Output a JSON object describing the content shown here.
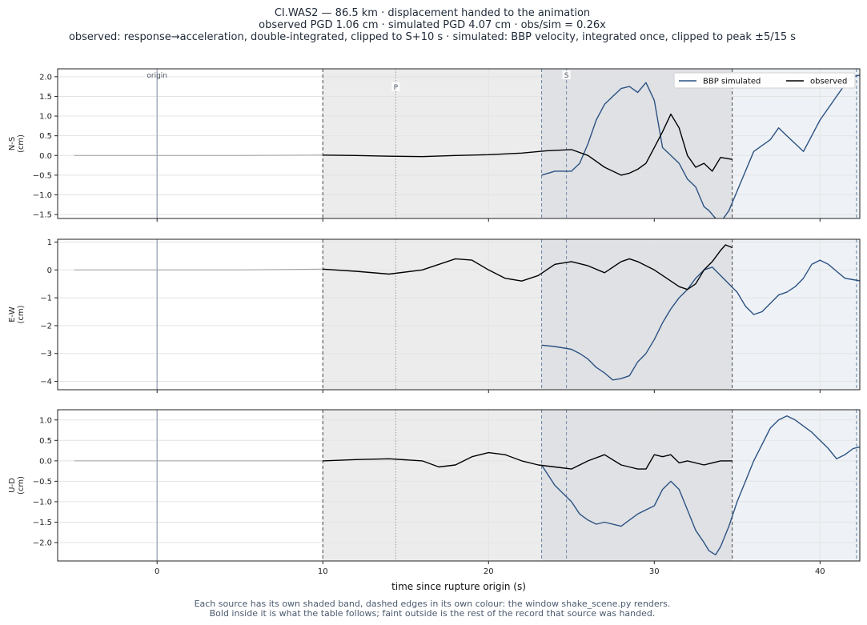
{
  "title_lines": [
    "CI.WAS2  —  86.5 km   ·   displacement handed to the animation",
    "observed PGD 1.06 cm   ·   simulated PGD 4.07 cm   ·   obs/sim = 0.26x",
    "observed: response→acceleration, double-integrated, clipped to S+10 s   ·   simulated: BBP velocity, integrated once, clipped to peak ±5/15 s"
  ],
  "footer_lines": [
    "Each source has its own shaded band, dashed edges in its own colour: the window shake_scene.py renders.",
    "Bold inside it is what the table follows;   faint outside is the rest of the record that source was handed."
  ],
  "colors": {
    "simulated": "#2c5282",
    "observed": "#000000",
    "observed_faint": "#a0a0a0",
    "obs_band": "#ececec",
    "sim_band": "#eef2f6",
    "overlap_band": "#dfe1e5",
    "obs_edge": "#555555",
    "sim_edge": "#6f8aa8",
    "origin_line": "#9aa3bd",
    "p_line": "#999999",
    "s_line": "#7f93b0",
    "grid": "#e3e3e3"
  },
  "chart_data": {
    "type": "line",
    "xlabel": "time since rupture origin (s)",
    "xlim": [
      -6,
      42.4
    ],
    "xticks": [
      0,
      10,
      20,
      30,
      40
    ],
    "markers": [
      {
        "label": "origin",
        "t": 0
      },
      {
        "label": "P",
        "t": 14.4
      },
      {
        "label": "S",
        "t": 24.7
      }
    ],
    "observed_window": [
      10,
      34.7
    ],
    "simulated_window": [
      23.2,
      43.2
    ],
    "legend": [
      "BBP simulated",
      "observed"
    ],
    "legend_position": "top-right",
    "grid": true,
    "panels": [
      {
        "ylabel": [
          "N-S",
          "(cm)"
        ],
        "ylim": [
          -1.6,
          2.2
        ],
        "yticks": [
          -1.5,
          -1.0,
          -0.5,
          0.0,
          0.5,
          1.0,
          1.5,
          2.0
        ],
        "ytick_labels": [
          "−1.5",
          "−1.0",
          "−0.5",
          "0.0",
          "0.5",
          "1.0",
          "1.5",
          "2.0"
        ],
        "observed_faint": {
          "t": [
            -5,
            0,
            5,
            10
          ],
          "v": [
            0,
            0,
            0,
            0.01
          ]
        },
        "observed": {
          "t": [
            10,
            12,
            14,
            16,
            18,
            20,
            22,
            23.5,
            25,
            26,
            27,
            28,
            28.5,
            29,
            29.5,
            30,
            30.5,
            31,
            31.5,
            32,
            32.5,
            33,
            33.5,
            34,
            34.7
          ],
          "v": [
            0.01,
            0.0,
            -0.02,
            -0.03,
            0.0,
            0.02,
            0.06,
            0.12,
            0.15,
            0.0,
            -0.3,
            -0.5,
            -0.45,
            -0.35,
            -0.2,
            0.2,
            0.6,
            1.05,
            0.7,
            0.0,
            -0.3,
            -0.2,
            -0.4,
            -0.05,
            -0.1
          ]
        },
        "simulated": {
          "t": [
            23.2,
            24,
            25,
            25.5,
            26,
            26.5,
            27,
            27.5,
            28,
            28.5,
            29,
            29.5,
            30,
            30.5,
            31,
            31.5,
            32,
            32.5,
            33,
            33.3,
            33.7,
            34,
            34.5,
            35,
            35.5,
            36,
            37,
            37.5,
            38,
            38.5,
            39,
            40,
            41,
            41.5,
            42,
            42.5,
            43.2
          ],
          "v": [
            -0.5,
            -0.4,
            -0.4,
            -0.2,
            0.3,
            0.9,
            1.3,
            1.5,
            1.7,
            1.75,
            1.6,
            1.85,
            1.4,
            0.2,
            0.0,
            -0.2,
            -0.6,
            -0.8,
            -1.3,
            -1.4,
            -1.6,
            -1.7,
            -1.4,
            -0.9,
            -0.4,
            0.1,
            0.4,
            0.7,
            0.5,
            0.3,
            0.1,
            0.9,
            1.5,
            1.8,
            2.0,
            2.05,
            2.1
          ]
        }
      },
      {
        "ylabel": [
          "E-W",
          "(cm)"
        ],
        "ylim": [
          -4.3,
          1.1
        ],
        "yticks": [
          -4,
          -3,
          -2,
          -1,
          0,
          1
        ],
        "ytick_labels": [
          "−4",
          "−3",
          "−2",
          "−1",
          "0",
          "1"
        ],
        "observed_faint": {
          "t": [
            -5,
            0,
            5,
            10
          ],
          "v": [
            0,
            0,
            0,
            0.03
          ]
        },
        "observed": {
          "t": [
            10,
            12,
            14,
            16,
            18,
            19,
            20,
            21,
            22,
            23,
            24,
            25,
            26,
            27,
            28,
            28.5,
            29,
            30,
            31,
            31.5,
            32,
            32.5,
            33,
            33.5,
            34,
            34.3,
            34.7
          ],
          "v": [
            0.03,
            -0.05,
            -0.15,
            0.0,
            0.4,
            0.35,
            0.0,
            -0.3,
            -0.4,
            -0.2,
            0.2,
            0.3,
            0.15,
            -0.1,
            0.3,
            0.4,
            0.3,
            0.0,
            -0.4,
            -0.6,
            -0.7,
            -0.5,
            0.0,
            0.3,
            0.7,
            0.9,
            0.8
          ]
        },
        "simulated": {
          "t": [
            23.2,
            24,
            25,
            25.5,
            26,
            26.5,
            27,
            27.5,
            28,
            28.5,
            29,
            29.5,
            30,
            30.5,
            31,
            31.5,
            32,
            32.5,
            33,
            33.5,
            34,
            34.5,
            35,
            35.5,
            36,
            36.5,
            37,
            37.5,
            38,
            38.5,
            39,
            39.5,
            40,
            40.5,
            41,
            41.5,
            42,
            42.5,
            43.2
          ],
          "v": [
            -2.7,
            -2.75,
            -2.85,
            -3.0,
            -3.2,
            -3.5,
            -3.7,
            -3.95,
            -3.9,
            -3.8,
            -3.3,
            -3.0,
            -2.5,
            -1.9,
            -1.4,
            -1.0,
            -0.7,
            -0.3,
            0.0,
            0.1,
            -0.2,
            -0.5,
            -0.8,
            -1.3,
            -1.6,
            -1.5,
            -1.2,
            -0.9,
            -0.8,
            -0.6,
            -0.3,
            0.2,
            0.35,
            0.2,
            -0.05,
            -0.3,
            -0.35,
            -0.4,
            -0.4
          ]
        }
      },
      {
        "ylabel": [
          "U-D",
          "(cm)"
        ],
        "ylim": [
          -2.45,
          1.25
        ],
        "yticks": [
          -2.0,
          -1.5,
          -1.0,
          -0.5,
          0.0,
          0.5,
          1.0
        ],
        "ytick_labels": [
          "−2.0",
          "−1.5",
          "−1.0",
          "−0.5",
          "0.0",
          "0.5",
          "1.0"
        ],
        "observed_faint": {
          "t": [
            -5,
            0,
            5,
            10
          ],
          "v": [
            0,
            0,
            0,
            0.0
          ]
        },
        "observed": {
          "t": [
            10,
            12,
            14,
            16,
            17,
            18,
            19,
            20,
            21,
            22,
            23,
            24,
            25,
            26,
            27,
            28,
            28.5,
            29,
            29.5,
            30,
            30.5,
            31,
            31.5,
            32,
            33,
            34,
            34.7
          ],
          "v": [
            0.0,
            0.03,
            0.05,
            0.0,
            -0.15,
            -0.1,
            0.1,
            0.2,
            0.15,
            0.0,
            -0.1,
            -0.15,
            -0.2,
            0.0,
            0.15,
            -0.1,
            -0.15,
            -0.2,
            -0.2,
            0.15,
            0.1,
            0.15,
            -0.05,
            0.0,
            -0.1,
            0.0,
            0.0
          ]
        },
        "simulated": {
          "t": [
            23.2,
            24,
            25,
            25.5,
            26,
            26.5,
            27,
            28,
            28.5,
            29,
            29.5,
            30,
            30.5,
            31,
            31.5,
            32,
            32.5,
            33,
            33.3,
            33.7,
            34,
            34.5,
            35,
            35.5,
            36,
            36.5,
            37,
            37.5,
            38,
            38.5,
            39,
            39.5,
            40,
            40.5,
            41,
            41.5,
            42,
            42.5,
            43.2
          ],
          "v": [
            -0.1,
            -0.6,
            -1.0,
            -1.3,
            -1.45,
            -1.55,
            -1.5,
            -1.6,
            -1.45,
            -1.3,
            -1.2,
            -1.1,
            -0.7,
            -0.5,
            -0.7,
            -1.2,
            -1.7,
            -2.0,
            -2.2,
            -2.3,
            -2.1,
            -1.6,
            -1.0,
            -0.5,
            0.0,
            0.4,
            0.8,
            1.0,
            1.1,
            1.0,
            0.85,
            0.7,
            0.5,
            0.3,
            0.05,
            0.15,
            0.3,
            0.35,
            0.38
          ]
        }
      }
    ]
  }
}
